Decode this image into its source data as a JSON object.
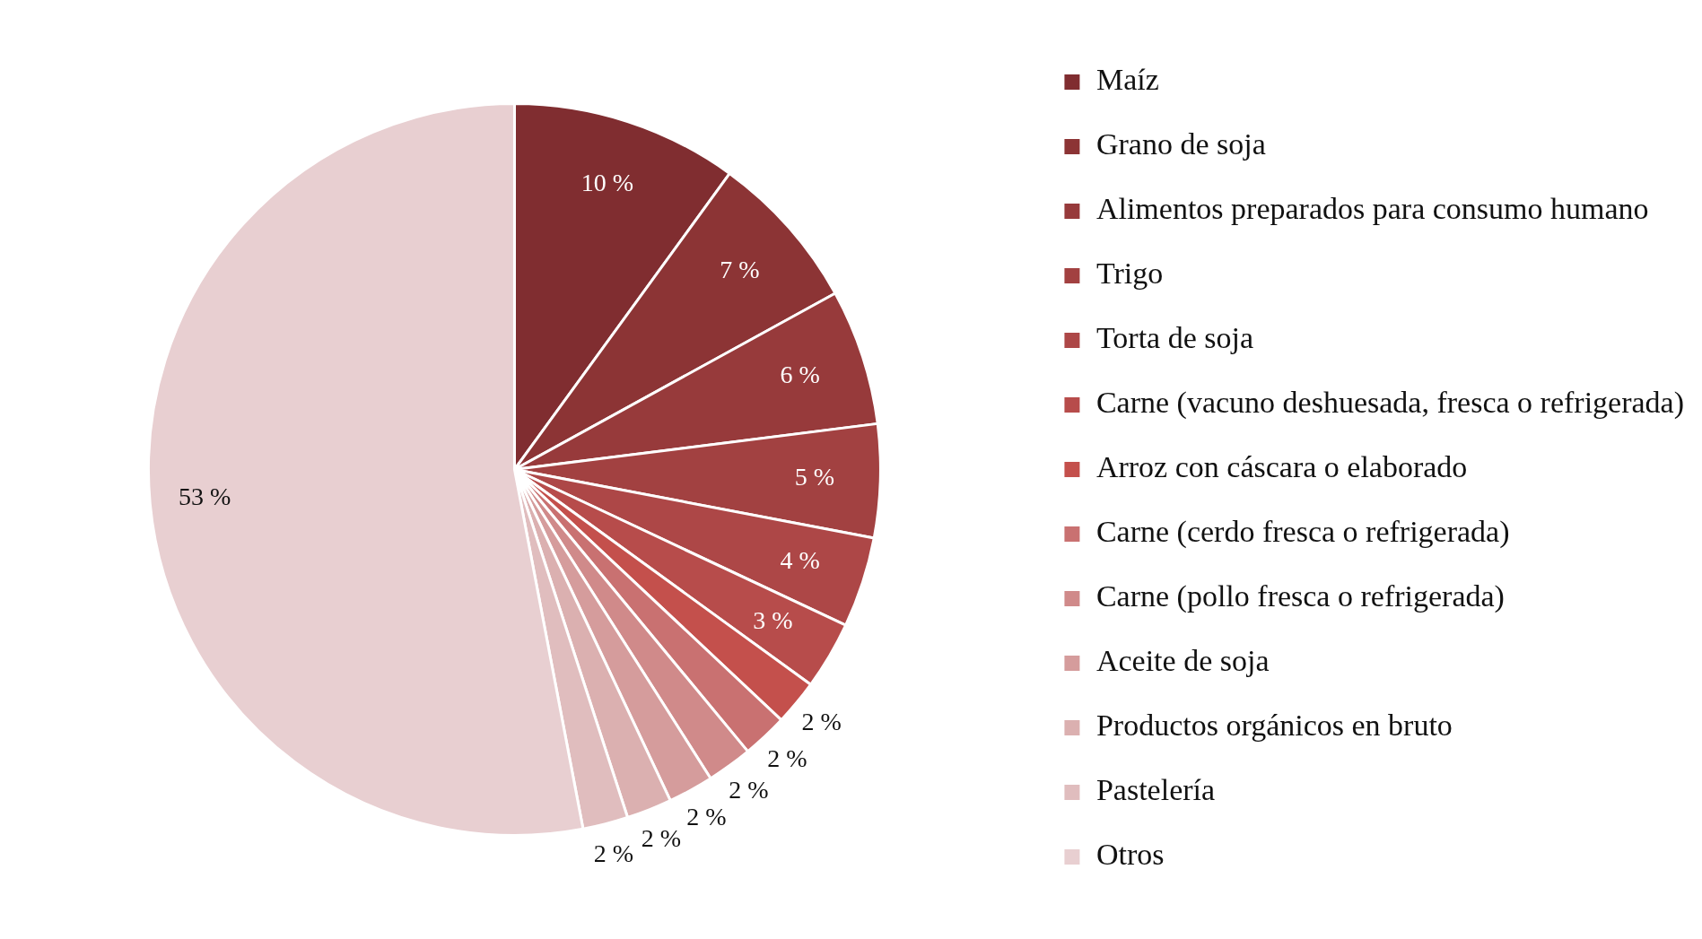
{
  "chart_data": {
    "type": "pie",
    "categories": [
      "Maíz",
      "Grano de soja",
      "Alimentos preparados para consumo humano",
      "Trigo",
      "Torta de soja",
      "Carne (vacuno deshuesada, fresca o refrigerada)",
      "Arroz con cáscara o elaborado",
      "Carne (cerdo fresca o refrigerada)",
      "Carne (pollo fresca o refrigerada)",
      "Aceite de soja",
      "Productos orgánicos en bruto",
      "Pastelería",
      "Otros"
    ],
    "values": [
      10,
      7,
      6,
      5,
      4,
      3,
      2,
      2,
      2,
      2,
      2,
      2,
      53
    ],
    "colors": [
      "#802d30",
      "#8c3435",
      "#973a3b",
      "#a24141",
      "#ad4747",
      "#b74c4b",
      "#c4504c",
      "#c97171",
      "#d08a8a",
      "#d59c9c",
      "#dbb0b0",
      "#e0bdbe",
      "#e8cfd1"
    ],
    "value_labels": [
      "10 %",
      "7 %",
      "6 %",
      "5 %",
      "4 %",
      "3 %",
      "2 %",
      "2 %",
      "2 %",
      "2 %",
      "2 %",
      "2 %",
      "53 %"
    ],
    "legend": "right"
  }
}
